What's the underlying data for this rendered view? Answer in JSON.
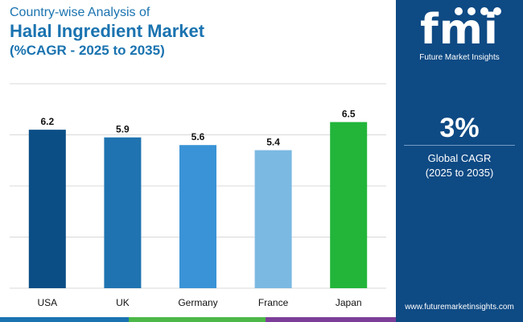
{
  "header": {
    "subtitle": "Country-wise Analysis of",
    "title": "Halal Ingredient Market",
    "title2": "(%CAGR - 2025 to 2035)"
  },
  "sidebar": {
    "logo_mark": "fmi",
    "logo_text": "Future Market Insights",
    "cagr_value": "3%",
    "cagr_label": "Global CAGR",
    "cagr_period": "(2025 to 2035)",
    "website": "www.futuremarketinsights.com"
  },
  "colors": {
    "sidebar_bg": "#0e4a84",
    "title": "#1a73b0",
    "bar_colors": [
      "#0b4e86",
      "#1f73b0",
      "#3a93d6",
      "#7bb9e2",
      "#22b53a"
    ],
    "strip": [
      "#1a73b0",
      "#4cb848",
      "#7c3f99",
      "#1a73b0"
    ]
  },
  "chart_data": {
    "type": "bar",
    "title": "Halal Ingredient Market",
    "xlabel": "",
    "ylabel": "",
    "categories": [
      "USA",
      "UK",
      "Germany",
      "France",
      "Japan"
    ],
    "values": [
      6.2,
      5.9,
      5.6,
      5.4,
      6.5
    ],
    "ylim": [
      0,
      8
    ],
    "grid": true
  }
}
